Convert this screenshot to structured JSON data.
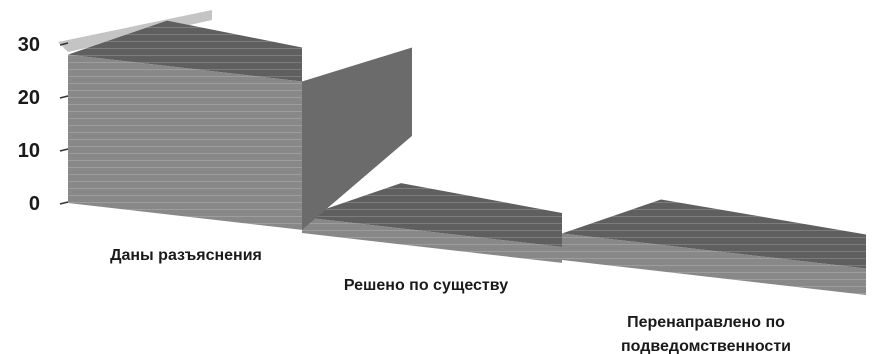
{
  "chart_data": {
    "type": "bar",
    "style": "3d",
    "categories": [
      "Даны разъяснения",
      "Решено по существу",
      "Перенаправлено по подведомственности"
    ],
    "values": [
      28,
      3,
      5
    ],
    "ylim": [
      0,
      30
    ],
    "yticks": [
      0,
      10,
      20,
      30
    ],
    "grid": false,
    "title": "",
    "xlabel": "",
    "ylabel": "",
    "colors": {
      "front": "#888888",
      "top": "#5f5f5f",
      "side": "#6b6b6b",
      "wall": "#c4c4c4",
      "text": "#1a1a1a"
    }
  }
}
